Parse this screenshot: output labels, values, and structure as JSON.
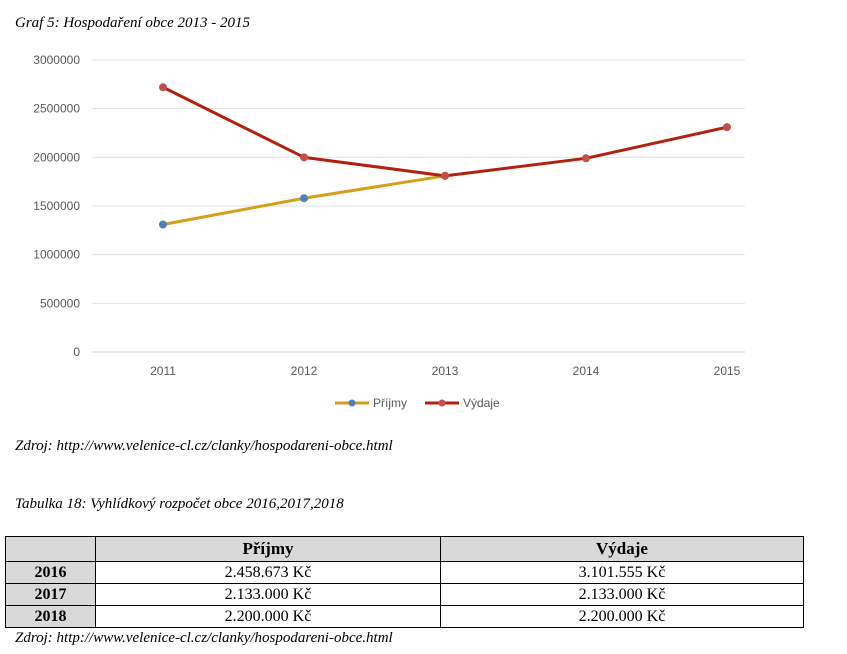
{
  "chart_caption": "Graf 5: Hospodaření obce 2013 - 2015",
  "chart_source": "Zdroj: http://www.velenice-cl.cz/clanky/hospodareni-obce.html",
  "chart_data": {
    "type": "line",
    "x": [
      "2011",
      "2012",
      "2013",
      "2014",
      "2015"
    ],
    "y_ticks": [
      "0",
      "500000",
      "1000000",
      "1500000",
      "2000000",
      "2500000",
      "3000000"
    ],
    "ylim": [
      0,
      3000000
    ],
    "grid": true,
    "legend_position": "bottom",
    "series": [
      {
        "name": "Příjmy",
        "line_color": "#d4a019",
        "marker_color": "#4f81bd",
        "values": [
          1310000,
          1580000,
          1810000,
          null,
          null
        ]
      },
      {
        "name": "Výdaje",
        "line_color": "#b2210e",
        "marker_color": "#c0504d",
        "values": [
          2720000,
          2000000,
          1810000,
          1990000,
          2310000
        ]
      }
    ]
  },
  "table_caption": "Tabulka 18: Vyhlídkový rozpočet obce 2016,2017,2018",
  "table": {
    "headers": [
      "",
      "Příjmy",
      "Výdaje"
    ],
    "rows": [
      {
        "year": "2016",
        "income": "2.458.673 Kč",
        "expense": "3.101.555 Kč"
      },
      {
        "year": "2017",
        "income": "2.133.000 Kč",
        "expense": "2.133.000 Kč"
      },
      {
        "year": "2018",
        "income": "2.200.000 Kč",
        "expense": "2.200.000 Kč"
      }
    ]
  },
  "table_source": "Zdroj: http://www.velenice-cl.cz/clanky/hospodareni-obce.html"
}
